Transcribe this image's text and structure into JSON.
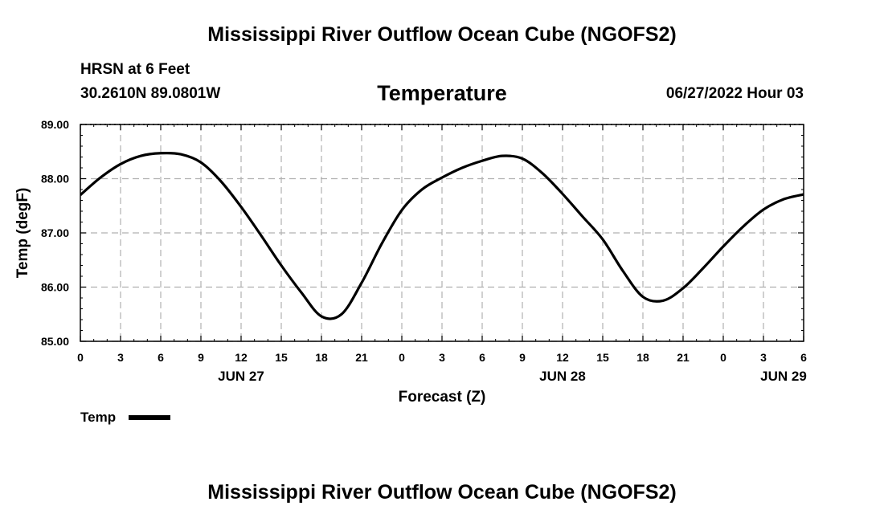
{
  "page": {
    "title": "Mississippi River Outflow Ocean Cube (NGOFS2)",
    "footer_title": "Mississippi River Outflow Ocean Cube (NGOFS2)",
    "station": "HRSN at 6 Feet",
    "coords": "30.2610N  89.0801W",
    "plot_title": "Temperature",
    "date_hour": "06/27/2022 Hour 03"
  },
  "chart_data": {
    "type": "line",
    "title": "Temperature",
    "xlabel": "Forecast (Z)",
    "ylabel": "Temp (degF)",
    "ylim": [
      85.0,
      89.0
    ],
    "xlim_hours": [
      0,
      54
    ],
    "x_tick_step_hours": 3,
    "x_tick_labels": [
      "0",
      "3",
      "6",
      "9",
      "12",
      "15",
      "18",
      "21",
      "0",
      "3",
      "6",
      "9",
      "12",
      "15",
      "18",
      "21",
      "0",
      "3",
      "6"
    ],
    "y_ticks": [
      85.0,
      86.0,
      87.0,
      88.0,
      89.0
    ],
    "y_tick_labels": [
      "85.00",
      "86.00",
      "87.00",
      "88.00",
      "89.00"
    ],
    "day_labels": [
      {
        "hour": 12,
        "label": "JUN 27"
      },
      {
        "hour": 36,
        "label": "JUN 28"
      },
      {
        "hour": 52.5,
        "label": "JUN 29"
      }
    ],
    "grid": true,
    "legend": "bottom-left",
    "series": [
      {
        "name": "Temp",
        "color": "#000000",
        "x_hours": [
          0,
          1.5,
          3,
          4.5,
          6,
          7.5,
          9,
          10.5,
          12,
          13.5,
          15,
          16.5,
          18,
          19.5,
          21,
          22.5,
          24,
          25.5,
          27,
          28.5,
          30,
          31.5,
          33,
          34.5,
          36,
          37.5,
          39,
          40.5,
          42,
          43.5,
          45,
          46.5,
          48,
          49.5,
          51,
          52.5,
          54
        ],
        "values": [
          87.7,
          88.02,
          88.27,
          88.42,
          88.47,
          88.45,
          88.3,
          87.95,
          87.48,
          86.95,
          86.4,
          85.9,
          85.46,
          85.5,
          86.08,
          86.8,
          87.42,
          87.8,
          88.02,
          88.2,
          88.33,
          88.42,
          88.37,
          88.1,
          87.72,
          87.3,
          86.88,
          86.3,
          85.82,
          85.75,
          85.98,
          86.35,
          86.75,
          87.12,
          87.43,
          87.62,
          87.71
        ]
      }
    ]
  }
}
